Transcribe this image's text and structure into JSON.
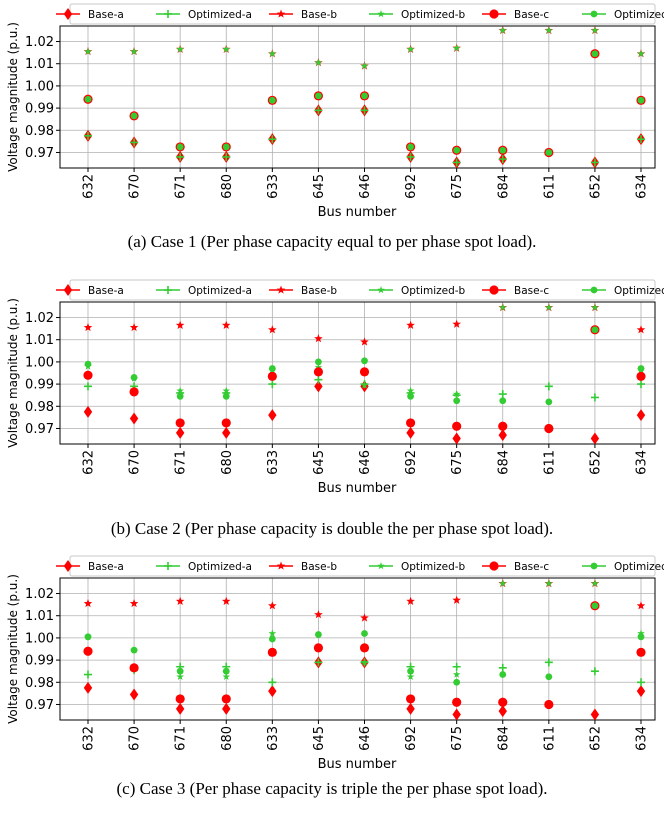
{
  "colors": {
    "base": "#ff0000",
    "optimized": "#33cc33",
    "grid": "#b0b0b0"
  },
  "legend": [
    "Base-a",
    "Optimized-a",
    "Base-b",
    "Optimized-b",
    "Base-c",
    "Optimized-c"
  ],
  "chart_data": [
    {
      "type": "scatter",
      "caption": "(a) Case 1 (Per phase capacity equal to per phase spot load).",
      "xlabel": "Bus number",
      "ylabel": "Voltage magnitude (p.u.)",
      "ylim": [
        0.963,
        1.027
      ],
      "yticks": [
        "0.97",
        "0.98",
        "0.99",
        "1.00",
        "1.01",
        "1.02"
      ],
      "categories": [
        "632",
        "670",
        "671",
        "680",
        "633",
        "645",
        "646",
        "692",
        "675",
        "684",
        "611",
        "652",
        "634"
      ],
      "grid": true,
      "legend_position": "top",
      "series": [
        {
          "name": "Base-a",
          "marker": "diamond",
          "values": [
            0.9775,
            0.9745,
            0.968,
            0.968,
            0.976,
            0.989,
            0.989,
            0.968,
            0.9655,
            0.967,
            null,
            0.9655,
            0.976
          ]
        },
        {
          "name": "Optimized-a",
          "marker": "plus",
          "values": [
            0.9775,
            0.9745,
            0.968,
            0.968,
            0.976,
            0.989,
            0.989,
            0.968,
            0.9655,
            0.967,
            null,
            0.9655,
            0.976
          ]
        },
        {
          "name": "Base-b",
          "marker": "star",
          "values": [
            1.0155,
            1.0155,
            1.0165,
            1.0165,
            1.0145,
            1.0105,
            1.009,
            1.0165,
            1.017,
            1.025,
            1.025,
            1.025,
            1.0145
          ]
        },
        {
          "name": "Optimized-b",
          "marker": "star",
          "values": [
            1.0155,
            1.0155,
            1.0165,
            1.0165,
            1.0145,
            1.0105,
            1.009,
            1.0165,
            1.017,
            1.025,
            1.025,
            1.025,
            1.0145
          ]
        },
        {
          "name": "Base-c",
          "marker": "circle",
          "values": [
            0.994,
            0.9865,
            0.9725,
            0.9725,
            0.9935,
            0.9955,
            0.9955,
            0.9725,
            0.971,
            0.971,
            0.97,
            1.0145,
            0.9935
          ]
        },
        {
          "name": "Optimized-c",
          "marker": "circle",
          "values": [
            0.994,
            0.9865,
            0.9725,
            0.9725,
            0.9935,
            0.9955,
            0.9955,
            0.9725,
            0.971,
            0.971,
            0.97,
            1.0145,
            0.9935
          ]
        }
      ]
    },
    {
      "type": "scatter",
      "caption": "(b) Case 2 (Per phase capacity is double the per phase spot load).",
      "xlabel": "Bus number",
      "ylabel": "Voltage magnitude (p.u.)",
      "ylim": [
        0.963,
        1.027
      ],
      "yticks": [
        "0.97",
        "0.98",
        "0.99",
        "1.00",
        "1.01",
        "1.02"
      ],
      "categories": [
        "632",
        "670",
        "671",
        "680",
        "633",
        "645",
        "646",
        "692",
        "675",
        "684",
        "611",
        "652",
        "634"
      ],
      "grid": true,
      "legend_position": "top",
      "series": [
        {
          "name": "Base-a",
          "marker": "diamond",
          "values": [
            0.9775,
            0.9745,
            0.968,
            0.968,
            0.976,
            0.989,
            0.989,
            0.968,
            0.9655,
            0.967,
            null,
            0.9655,
            0.976
          ]
        },
        {
          "name": "Optimized-a",
          "marker": "plus",
          "values": [
            0.989,
            0.989,
            0.986,
            0.986,
            0.99,
            0.992,
            0.99,
            0.986,
            0.985,
            0.9855,
            0.989,
            0.984,
            0.99
          ]
        },
        {
          "name": "Base-b",
          "marker": "star",
          "values": [
            1.0155,
            1.0155,
            1.0165,
            1.0165,
            1.0145,
            1.0105,
            1.009,
            1.0165,
            1.017,
            1.0245,
            1.0245,
            1.0245,
            1.0145
          ]
        },
        {
          "name": "Optimized-b",
          "marker": "star",
          "values": [
            0.998,
            0.9925,
            0.987,
            0.987,
            0.9965,
            0.9975,
            0.9895,
            0.987,
            0.9855,
            1.0245,
            1.0245,
            1.0245,
            0.9965
          ]
        },
        {
          "name": "Base-c",
          "marker": "circle",
          "values": [
            0.994,
            0.9865,
            0.9725,
            0.9725,
            0.9935,
            0.9955,
            0.9955,
            0.9725,
            0.971,
            0.971,
            0.97,
            1.0145,
            0.9935
          ]
        },
        {
          "name": "Optimized-c",
          "marker": "circle",
          "values": [
            0.999,
            0.993,
            0.9845,
            0.9845,
            0.997,
            1.0,
            1.0005,
            0.9845,
            0.9825,
            0.9825,
            0.982,
            1.0145,
            0.997
          ]
        }
      ]
    },
    {
      "type": "scatter",
      "caption": "(c) Case 3 (Per phase capacity is triple the per phase spot load).",
      "xlabel": "Bus number",
      "ylabel": "Voltage magnitude (p.u.)",
      "ylim": [
        0.963,
        1.027
      ],
      "yticks": [
        "0.97",
        "0.98",
        "0.99",
        "1.00",
        "1.01",
        "1.02"
      ],
      "categories": [
        "632",
        "670",
        "671",
        "680",
        "633",
        "645",
        "646",
        "692",
        "675",
        "684",
        "611",
        "652",
        "634"
      ],
      "grid": true,
      "legend_position": "top",
      "series": [
        {
          "name": "Base-a",
          "marker": "diamond",
          "values": [
            0.9775,
            0.9745,
            0.968,
            0.968,
            0.976,
            0.989,
            0.989,
            0.968,
            0.9655,
            0.967,
            null,
            0.9655,
            0.976
          ]
        },
        {
          "name": "Optimized-a",
          "marker": "plus",
          "values": [
            0.9835,
            0.9855,
            0.987,
            0.987,
            0.98,
            0.989,
            0.989,
            0.987,
            0.987,
            0.9865,
            0.989,
            0.985,
            0.98
          ]
        },
        {
          "name": "Base-b",
          "marker": "star",
          "values": [
            1.0155,
            1.0155,
            1.0165,
            1.0165,
            1.0145,
            1.0105,
            1.009,
            1.0165,
            1.017,
            1.0245,
            1.0245,
            1.0245,
            1.0145
          ]
        },
        {
          "name": "Optimized-b",
          "marker": "star",
          "values": [
            1.0005,
            0.9945,
            0.9825,
            0.9825,
            1.002,
            0.9955,
            0.989,
            0.9825,
            0.9835,
            1.0245,
            1.0245,
            1.0245,
            1.002
          ]
        },
        {
          "name": "Base-c",
          "marker": "circle",
          "values": [
            0.994,
            0.9865,
            0.9725,
            0.9725,
            0.9935,
            0.9955,
            0.9955,
            0.9725,
            0.971,
            0.971,
            0.97,
            1.0145,
            0.9935
          ]
        },
        {
          "name": "Optimized-c",
          "marker": "circle",
          "values": [
            1.0005,
            0.9945,
            0.985,
            0.985,
            0.9995,
            1.0015,
            1.002,
            0.985,
            0.98,
            0.9835,
            0.9825,
            1.0145,
            1.0005
          ]
        }
      ]
    }
  ]
}
